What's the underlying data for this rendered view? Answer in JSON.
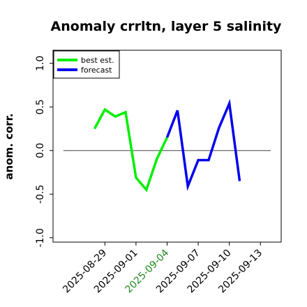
{
  "chart_data": {
    "type": "line",
    "title": "Anomaly crrltn, layer 5 salinity",
    "ylabel": "anom. corr.",
    "xlabel": "",
    "ylim": [
      -1.05,
      1.15
    ],
    "xlim": [
      "2025-08-24",
      "2025-09-15"
    ],
    "yticks": [
      "-1.0",
      "-0.5",
      "0.0",
      "0.5",
      "1.0"
    ],
    "ytick_values": [
      -1.0,
      -0.5,
      0.0,
      0.5,
      1.0
    ],
    "xticks": [
      {
        "date": "2025-08-29",
        "label": "2025-08-29",
        "color": "#000000"
      },
      {
        "date": "2025-09-01",
        "label": "2025-09-01",
        "color": "#000000"
      },
      {
        "date": "2025-09-04",
        "label": "2025-09-04",
        "color": "#228B22"
      },
      {
        "date": "2025-09-07",
        "label": "2025-09-07",
        "color": "#000000"
      },
      {
        "date": "2025-09-10",
        "label": "2025-09-10",
        "color": "#000000"
      },
      {
        "date": "2025-09-13",
        "label": "2025-09-13",
        "color": "#000000"
      }
    ],
    "reference_line": {
      "y": 0.0,
      "from": "2025-08-25",
      "to": "2025-09-14",
      "color": "#666666"
    },
    "legend_position": "top-left",
    "grid": false,
    "series": [
      {
        "name": "best est.",
        "color": "#00ee00",
        "x": [
          "2025-08-28",
          "2025-08-29",
          "2025-08-30",
          "2025-08-31",
          "2025-09-01",
          "2025-09-02",
          "2025-09-03",
          "2025-09-04"
        ],
        "y": [
          0.25,
          0.47,
          0.39,
          0.44,
          -0.31,
          -0.45,
          -0.1,
          0.15
        ]
      },
      {
        "name": "forecast",
        "color": "#0000ee",
        "x": [
          "2025-09-04",
          "2025-09-05",
          "2025-09-06",
          "2025-09-07",
          "2025-09-08",
          "2025-09-09",
          "2025-09-10",
          "2025-09-11"
        ],
        "y": [
          0.15,
          0.46,
          -0.41,
          -0.11,
          -0.11,
          0.26,
          0.54,
          -0.35
        ]
      }
    ]
  }
}
